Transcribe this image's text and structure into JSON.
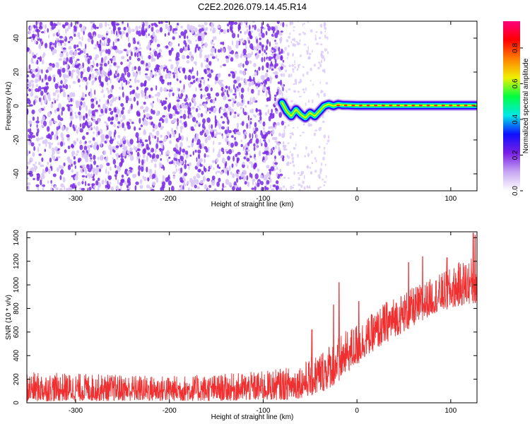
{
  "title": "C2E2.2026.079.14.45.R14",
  "colors": {
    "snr_line": "#f03030",
    "spectrogram_noise": "#7a2ce8",
    "spectrogram_noise_light": "#d9c8f7",
    "axis": "#000000"
  },
  "chart_data": [
    {
      "type": "heatmap",
      "name": "spectrogram",
      "xlabel": "Height of straight line (km)",
      "ylabel": "Frequency (Hz)",
      "xlim": [
        -352,
        128
      ],
      "ylim": [
        -50,
        50
      ],
      "xticks": [
        -300,
        -200,
        -100,
        0,
        100
      ],
      "yticks": [
        -40,
        -20,
        0,
        20,
        40
      ],
      "xtick_labels": [
        "-300",
        "-200",
        "-100",
        "0",
        "100"
      ],
      "ytick_labels": [
        "-40",
        "-20",
        "0",
        "20",
        "40"
      ],
      "noise_region_x": [
        -352,
        -78
      ],
      "signal_trace": {
        "x": [
          -80,
          -75,
          -70,
          -65,
          -60,
          -55,
          -50,
          -45,
          -40,
          -35,
          -30,
          -25,
          -20,
          -15,
          -10,
          0,
          20,
          40,
          60,
          80,
          100,
          128
        ],
        "y": [
          2,
          -3,
          -6,
          -2,
          -5,
          -7,
          -4,
          -6,
          -3,
          0,
          1,
          0,
          1,
          0.5,
          0.5,
          0.3,
          0.3,
          0.3,
          0.3,
          0.3,
          0.3,
          0.3
        ]
      },
      "colorbar": {
        "label": "Normalized spectral amplitude",
        "range": [
          0,
          0.95
        ],
        "ticks": [
          0.0,
          0.2,
          0.4,
          0.6,
          0.8
        ],
        "tick_labels": [
          "0.0",
          "0.2",
          "0.4",
          "0.6",
          "0.8"
        ],
        "colors": [
          "#ffffff",
          "#c8a8f4",
          "#7a1fe6",
          "#1010ff",
          "#00e8e8",
          "#00ff40",
          "#f0f000",
          "#ff8000",
          "#ff0000",
          "#ff0080"
        ]
      }
    },
    {
      "type": "line",
      "name": "snr",
      "xlabel": "Height of straight line (km)",
      "ylabel": "SNR (10 * v/v)",
      "xlim": [
        -352,
        128
      ],
      "ylim": [
        0,
        1450
      ],
      "xticks": [
        -300,
        -200,
        -100,
        0,
        100
      ],
      "yticks": [
        0,
        200,
        400,
        600,
        800,
        1000,
        1200,
        1400
      ],
      "xtick_labels": [
        "-300",
        "-200",
        "-100",
        "0",
        "100"
      ],
      "ytick_labels": [
        "0",
        "200",
        "400",
        "600",
        "800",
        "1000",
        "1200",
        "1400"
      ],
      "series": [
        {
          "name": "SNR",
          "envelope_x": [
            -352,
            -300,
            -250,
            -200,
            -150,
            -100,
            -75,
            -60,
            -50,
            -40,
            -30,
            -20,
            -10,
            0,
            10,
            20,
            30,
            40,
            50,
            60,
            70,
            80,
            90,
            100,
            110,
            128
          ],
          "envelope_low": [
            10,
            15,
            15,
            15,
            15,
            20,
            25,
            40,
            60,
            80,
            120,
            180,
            260,
            320,
            400,
            450,
            500,
            560,
            600,
            650,
            700,
            750,
            780,
            800,
            820,
            850
          ],
          "envelope_high": [
            260,
            250,
            240,
            230,
            240,
            270,
            300,
            330,
            380,
            440,
            500,
            560,
            620,
            680,
            720,
            780,
            860,
            900,
            940,
            980,
            1020,
            1060,
            1100,
            1140,
            1200,
            1260
          ],
          "spikes": [
            {
              "x": -48,
              "y": 620
            },
            {
              "x": -25,
              "y": 830
            },
            {
              "x": -19,
              "y": 1020
            },
            {
              "x": 2,
              "y": 860
            },
            {
              "x": 55,
              "y": 1190
            },
            {
              "x": 70,
              "y": 1240
            },
            {
              "x": 96,
              "y": 1230
            },
            {
              "x": 124,
              "y": 1440
            },
            {
              "x": 126,
              "y": 1420
            }
          ]
        }
      ]
    }
  ]
}
